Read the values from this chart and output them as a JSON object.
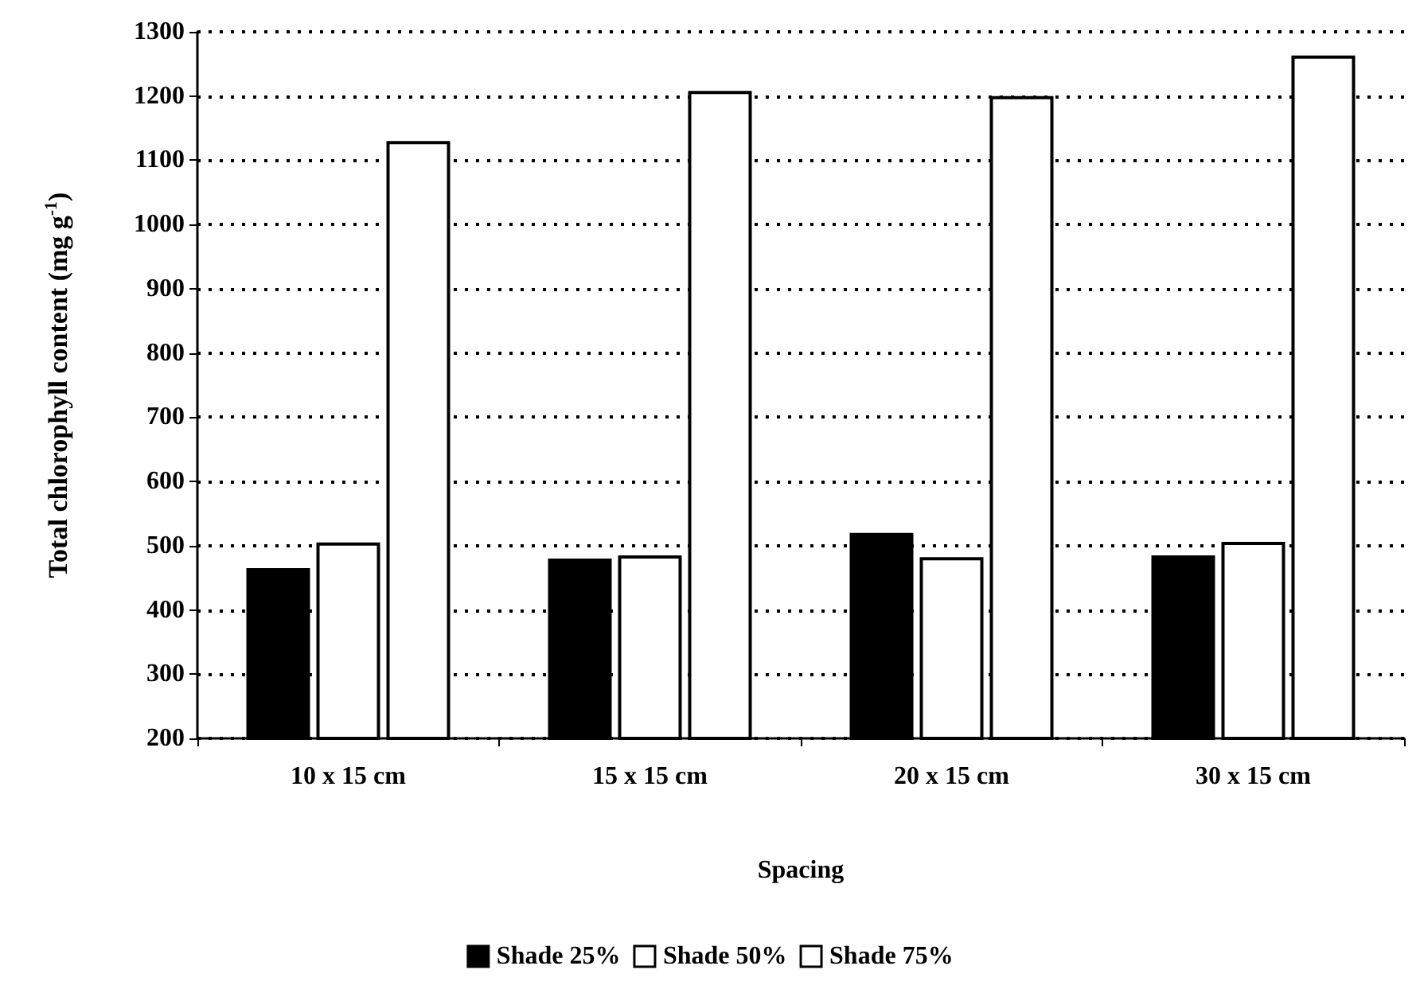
{
  "chart_data": {
    "type": "bar",
    "xlabel": "Spacing",
    "ylabel": "Total chlorophyll content (mg g$^{-1}$)",
    "categories": [
      "10 x 15 cm",
      "15 x 15 cm",
      "20 x 15 cm",
      "30 x 15 cm"
    ],
    "series": [
      {
        "name": "Shade 25%",
        "color": "#000000",
        "values": [
          465,
          480,
          520,
          485
        ]
      },
      {
        "name": "Shade 50%",
        "color": "#ffffff",
        "values": [
          505,
          485,
          482,
          506
        ]
      },
      {
        "name": "Shade 75%",
        "color": "#ffffff",
        "values": [
          1130,
          1208,
          1200,
          1263
        ]
      }
    ],
    "ylim": [
      200,
      1300
    ],
    "yticks": [
      200,
      300,
      400,
      500,
      600,
      700,
      800,
      900,
      1000,
      1100,
      1200,
      1300
    ],
    "grid": "y",
    "legend": "bottom"
  }
}
